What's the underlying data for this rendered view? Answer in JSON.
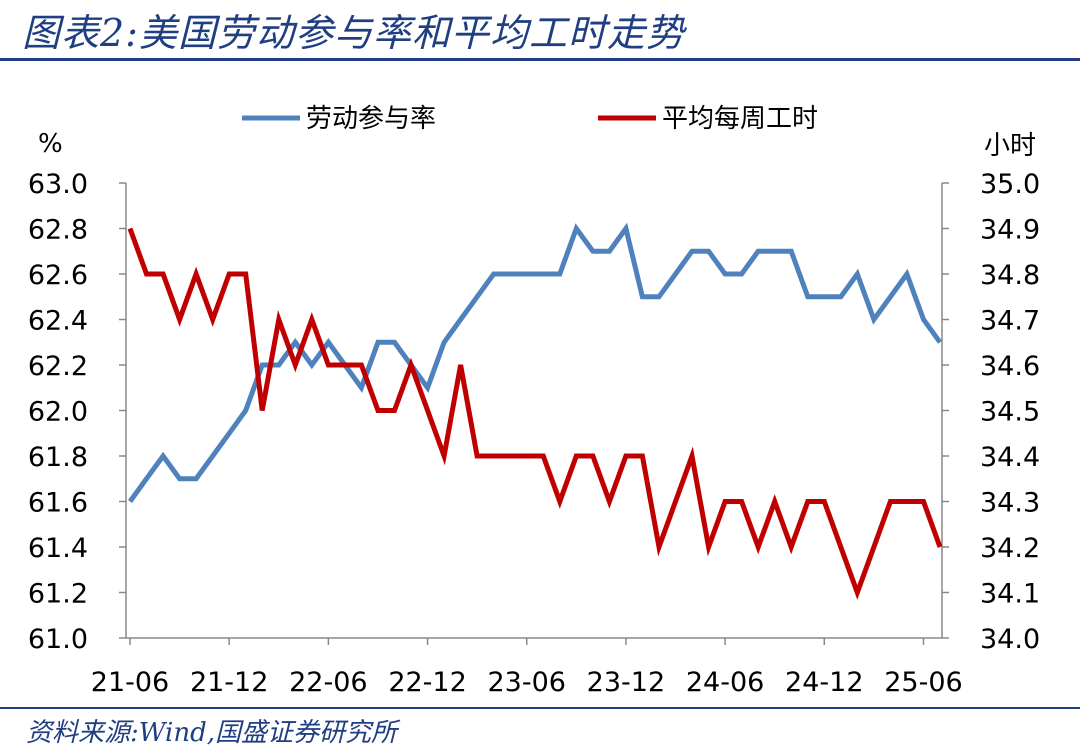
{
  "header": {
    "title": "图表2:美国劳动参与率和平均工时走势"
  },
  "footer": {
    "source": "资料来源:Wind,国盛证券研究所"
  },
  "chart_data": {
    "type": "line",
    "title": "图表2:美国劳动参与率和平均工时走势",
    "left_axis": {
      "unit": "%",
      "ylim": [
        61.0,
        63.0
      ],
      "ticks": [
        "63.0",
        "62.8",
        "62.6",
        "62.4",
        "62.2",
        "62.0",
        "61.8",
        "61.6",
        "61.4",
        "61.2",
        "61.0"
      ]
    },
    "right_axis": {
      "unit": "小时",
      "ylim": [
        34.0,
        35.0
      ],
      "ticks": [
        "35.0",
        "34.9",
        "34.8",
        "34.7",
        "34.6",
        "34.5",
        "34.4",
        "34.3",
        "34.2",
        "34.1",
        "34.0"
      ]
    },
    "x_labels": [
      "21-06",
      "21-12",
      "22-06",
      "22-12",
      "23-06",
      "23-12",
      "24-06",
      "24-12",
      "25-06"
    ],
    "x_start": "2021-06",
    "grid": false,
    "legend": "top",
    "series": [
      {
        "name": "劳动参与率",
        "axis": "left",
        "color": "#4f81bd",
        "values": [
          61.6,
          61.7,
          61.8,
          61.7,
          61.7,
          61.8,
          61.9,
          62.0,
          62.2,
          62.2,
          62.3,
          62.2,
          62.3,
          62.2,
          62.1,
          62.3,
          62.3,
          62.2,
          62.1,
          62.3,
          62.4,
          62.5,
          62.6,
          62.6,
          62.6,
          62.6,
          62.6,
          62.8,
          62.7,
          62.7,
          62.8,
          62.5,
          62.5,
          62.6,
          62.7,
          62.7,
          62.6,
          62.6,
          62.7,
          62.7,
          62.7,
          62.5,
          62.5,
          62.5,
          62.6,
          62.4,
          62.5,
          62.6,
          62.4,
          62.3
        ]
      },
      {
        "name": "平均每周工时",
        "axis": "right",
        "color": "#c00000",
        "values": [
          34.9,
          34.8,
          34.8,
          34.7,
          34.8,
          34.7,
          34.8,
          34.8,
          34.5,
          34.7,
          34.6,
          34.7,
          34.6,
          34.6,
          34.6,
          34.5,
          34.5,
          34.6,
          34.5,
          34.4,
          34.6,
          34.4,
          34.4,
          34.4,
          34.4,
          34.4,
          34.3,
          34.4,
          34.4,
          34.3,
          34.4,
          34.4,
          34.2,
          34.3,
          34.4,
          34.2,
          34.3,
          34.3,
          34.2,
          34.3,
          34.2,
          34.3,
          34.3,
          34.2,
          34.1,
          34.2,
          34.3,
          34.3,
          34.3,
          34.2
        ]
      }
    ]
  }
}
